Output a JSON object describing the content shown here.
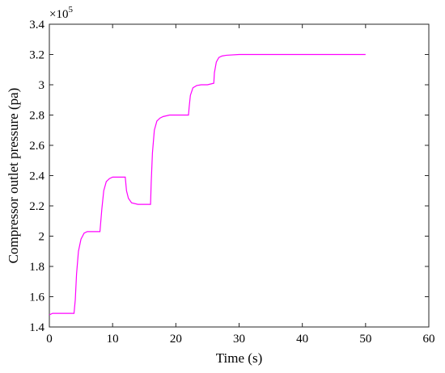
{
  "chart_data": {
    "type": "line",
    "xlabel": "Time (s)",
    "ylabel": "Compressor outlet pressure (pa)",
    "exponent_prefix": "×10",
    "exponent_power": "5",
    "xlim": [
      0,
      60
    ],
    "ylim": [
      1.4,
      3.4
    ],
    "xticks": [
      "0",
      "10",
      "20",
      "30",
      "40",
      "50",
      "60"
    ],
    "yticks": [
      "1.4",
      "1.6",
      "1.8",
      "2",
      "2.2",
      "2.4",
      "2.6",
      "2.8",
      "3",
      "3.2",
      "3.4"
    ],
    "grid": false,
    "line_color": "#ff00ff",
    "series": [
      {
        "x": [
          0,
          0.5,
          1,
          2,
          3,
          3.9,
          4.1,
          4.3,
          4.6,
          5,
          5.5,
          6,
          7,
          8,
          8.1,
          8.3,
          8.6,
          9,
          9.5,
          10,
          11,
          12,
          12.2,
          12.5,
          13,
          14,
          15,
          16,
          16.1,
          16.3,
          16.6,
          17,
          17.5,
          18,
          19,
          20,
          21,
          22,
          22.1,
          22.3,
          22.7,
          23.3,
          24,
          25,
          26,
          26.1,
          26.4,
          26.8,
          27.3,
          28,
          30,
          35,
          40,
          45,
          50
        ],
        "y": [
          1.48,
          1.49,
          1.49,
          1.49,
          1.49,
          1.49,
          1.58,
          1.75,
          1.9,
          1.98,
          2.02,
          2.03,
          2.03,
          2.03,
          2.08,
          2.18,
          2.3,
          2.36,
          2.38,
          2.39,
          2.39,
          2.39,
          2.3,
          2.25,
          2.22,
          2.21,
          2.21,
          2.21,
          2.35,
          2.55,
          2.7,
          2.76,
          2.78,
          2.79,
          2.8,
          2.8,
          2.8,
          2.8,
          2.85,
          2.93,
          2.98,
          2.995,
          3.0,
          3.0,
          3.01,
          3.08,
          3.15,
          3.18,
          3.19,
          3.195,
          3.2,
          3.2,
          3.2,
          3.2,
          3.2
        ]
      }
    ]
  }
}
